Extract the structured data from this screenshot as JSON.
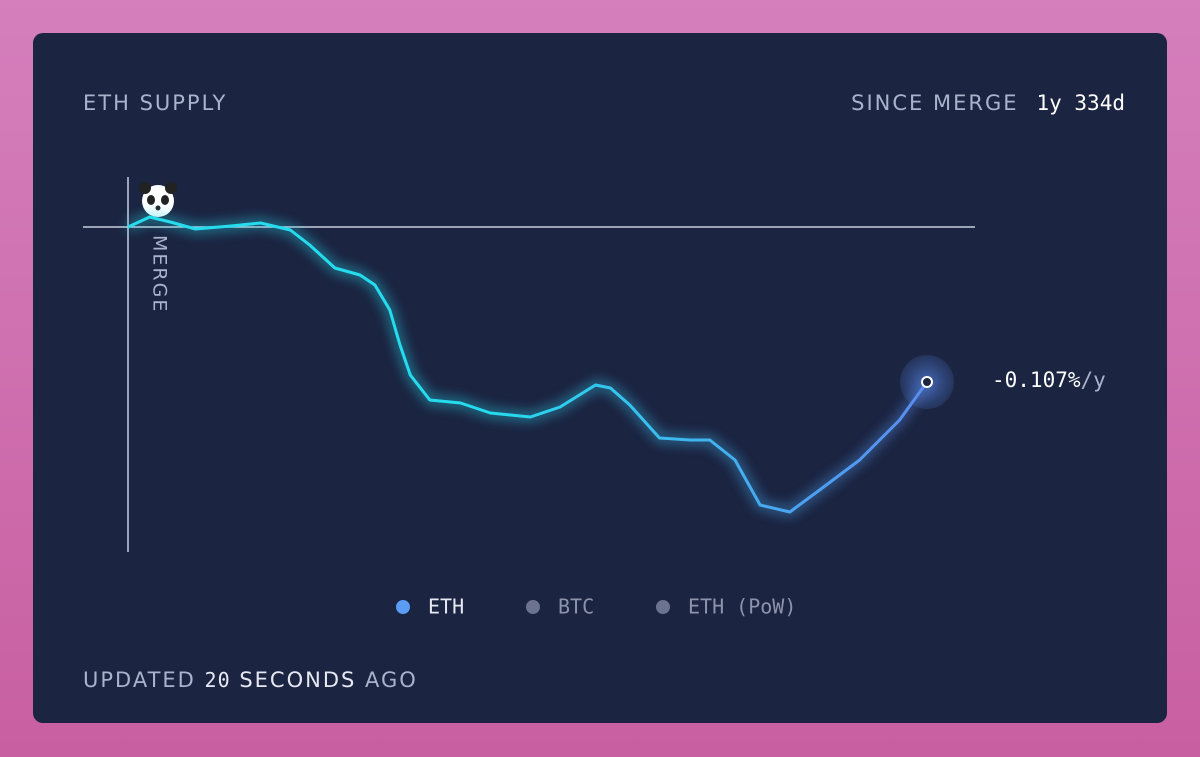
{
  "chart_data": {
    "type": "line",
    "title": "ETH SUPPLY",
    "since_label": "SINCE MERGE",
    "since_value": "1y 334d",
    "merge_label": "MERGE",
    "end_label": "-0.107%",
    "end_unit": "/y",
    "x": [
      0,
      19,
      37,
      59,
      90,
      116,
      142,
      159,
      181,
      203,
      216,
      229,
      238,
      247,
      264,
      291,
      317,
      352,
      378,
      409,
      422,
      439,
      465,
      492,
      509,
      531,
      553,
      579,
      605,
      640,
      675,
      699
    ],
    "series": [
      {
        "name": "ETH",
        "color": "#5b9cf4",
        "gradient": [
          "#25dcee",
          "#5a8cf0"
        ],
        "values": [
          0,
          10,
          5,
          -2,
          1,
          4,
          -3,
          -18,
          -41,
          -48,
          -58,
          -83,
          -118,
          -148,
          -173,
          -176,
          -186,
          -190,
          -180,
          -158,
          -161,
          -178,
          -211,
          -213,
          -213,
          -233,
          -278,
          -285,
          -263,
          -233,
          -193,
          -155
        ]
      }
    ],
    "legend": [
      {
        "name": "ETH",
        "color": "#5b9cf4"
      },
      {
        "name": "BTC",
        "color": "#6b7390"
      },
      {
        "name": "ETH (PoW)",
        "color": "#6b7390"
      }
    ],
    "xlim": [
      0,
      699
    ],
    "ylim": [
      -325,
      50
    ],
    "footer": [
      "UPDATED",
      "20",
      "SECONDS",
      "AGO"
    ]
  }
}
